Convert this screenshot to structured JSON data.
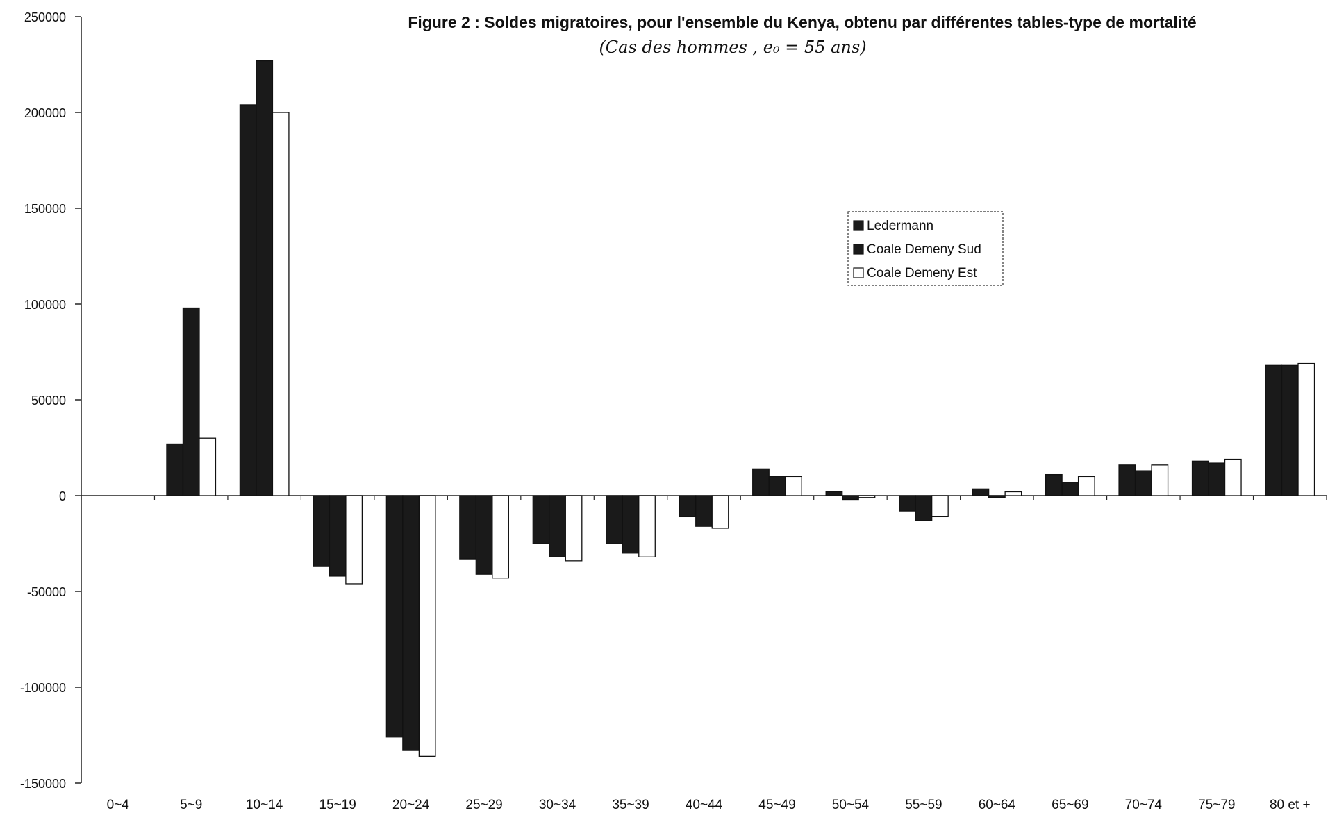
{
  "chart_data": {
    "type": "bar",
    "title": "Figure 2 : Soldes migratoires, pour l'ensemble du Kenya, obtenu par différentes tables-type de mortalité",
    "subtitle": "(Cas des hommes , e₀ = 55 ans)",
    "xlabel": "",
    "ylabel": "",
    "ylim": [
      -150000,
      250000
    ],
    "yticks": [
      250000,
      200000,
      150000,
      100000,
      50000,
      0,
      -50000,
      -100000,
      -150000
    ],
    "categories": [
      "0~4",
      "5~9",
      "10~14",
      "15~19",
      "20~24",
      "25~29",
      "30~34",
      "35~39",
      "40~44",
      "45~49",
      "50~54",
      "55~59",
      "60~64",
      "65~69",
      "70~74",
      "75~79",
      "80 et +"
    ],
    "series": [
      {
        "name": "Ledermann",
        "color": "#1a1a1a",
        "values": [
          0,
          27000,
          204000,
          -37000,
          -126000,
          -33000,
          -25000,
          -25000,
          -11000,
          14000,
          2000,
          -8000,
          3500,
          11000,
          16000,
          18000,
          68000
        ]
      },
      {
        "name": "Coale Demeny Sud",
        "color": "#1a1a1a",
        "values": [
          0,
          98000,
          227000,
          -42000,
          -133000,
          -41000,
          -32000,
          -30000,
          -16000,
          10000,
          -2000,
          -13000,
          -1000,
          7000,
          13000,
          17000,
          68000
        ]
      },
      {
        "name": "Coale Demeny Est",
        "color": "#ffffff",
        "values": [
          0,
          30000,
          200000,
          -46000,
          -136000,
          -43000,
          -34000,
          -32000,
          -17000,
          10000,
          -1000,
          -11000,
          2000,
          10000,
          16000,
          19000,
          69000
        ]
      }
    ],
    "grid": false,
    "legend_position": "top-right"
  }
}
